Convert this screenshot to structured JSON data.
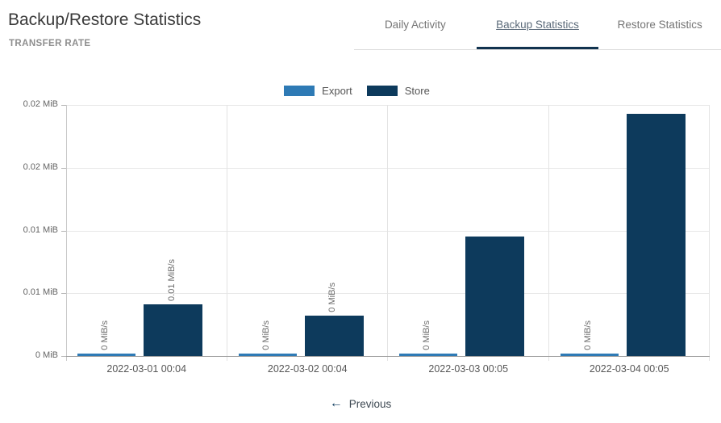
{
  "header": {
    "title": "Backup/Restore Statistics",
    "subtitle": "TRANSFER RATE"
  },
  "tabs": {
    "items": [
      {
        "label": "Daily Activity",
        "active": false
      },
      {
        "label": "Backup Statistics",
        "active": true
      },
      {
        "label": "Restore Statistics",
        "active": false
      }
    ]
  },
  "legend": {
    "items": [
      {
        "label": "Export",
        "color": "#2e7ab5"
      },
      {
        "label": "Store",
        "color": "#0d3a5c"
      }
    ]
  },
  "chart_data": {
    "type": "bar",
    "title": "TRANSFER RATE",
    "categories": [
      "2022-03-01 00:04",
      "2022-03-02 00:04",
      "2022-03-03 00:05",
      "2022-03-04 00:05"
    ],
    "series": [
      {
        "name": "Export",
        "color": "#2e7ab5",
        "values_mib_s": [
          0.0002,
          0.0002,
          0.0002,
          0.0002
        ],
        "bar_labels": [
          "0 MiB/s",
          "0 MiB/s",
          "0 MiB/s",
          "0 MiB/s"
        ]
      },
      {
        "name": "Store",
        "color": "#0d3a5c",
        "values_mib_s": [
          0.0041,
          0.0032,
          0.0095,
          0.0193
        ],
        "bar_labels": [
          "0.01 MiB/s",
          "0 MiB/s",
          "",
          ""
        ]
      }
    ],
    "ylabel": "MiB",
    "ylim": [
      0,
      0.02
    ],
    "y_ticks_top_to_bottom": [
      "0.02 MiB",
      "0.02 MiB",
      "0.01 MiB",
      "0.01 MiB",
      "0 MiB"
    ],
    "grid": true,
    "legend_position": "top"
  },
  "footer": {
    "arrow_icon": "←",
    "previous_label": "Previous"
  },
  "colors": {
    "accent_navy": "#11334f",
    "export_blue": "#2e7ab5",
    "store_navy": "#0d3a5c"
  }
}
